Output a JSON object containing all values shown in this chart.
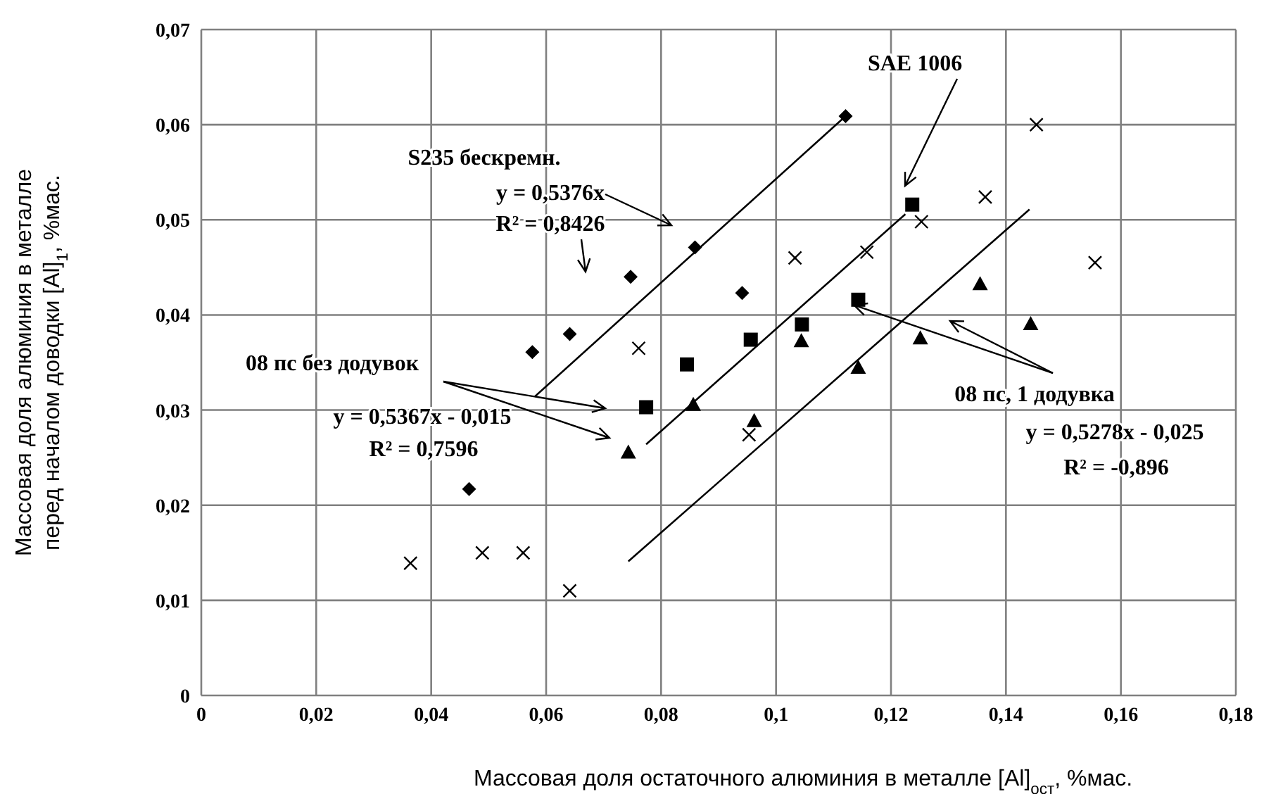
{
  "chart_data": {
    "type": "scatter",
    "xlabel": "Массовая доля остаточного алюминия в металле [Al]$_{ост}$, %мас.",
    "ylabel": "Массовая доля алюминия в металле\nперед началом доводки [Al]$_{1}$, %мас.",
    "xlim": [
      0,
      0.18
    ],
    "ylim": [
      0,
      0.07
    ],
    "xticks": [
      0,
      {
        "value": 0.02,
        "label": "0,02"
      },
      {
        "value": 0.04,
        "label": "0,04"
      },
      {
        "value": 0.06,
        "label": "0,06"
      },
      {
        "value": 0.08,
        "label": "0,08"
      },
      {
        "value": 0.1,
        "label": "0,1"
      },
      {
        "value": 0.12,
        "label": "0,12"
      },
      {
        "value": 0.14,
        "label": "0,14"
      },
      {
        "value": 0.16,
        "label": "0,16"
      },
      {
        "value": 0.18,
        "label": "0,18"
      }
    ],
    "yticks": [
      0,
      {
        "value": 0.01,
        "label": "0,01"
      },
      {
        "value": 0.02,
        "label": "0,02"
      },
      {
        "value": 0.03,
        "label": "0,03"
      },
      {
        "value": 0.04,
        "label": "0,04"
      },
      {
        "value": 0.05,
        "label": "0,05"
      },
      {
        "value": 0.06,
        "label": "0,06"
      },
      {
        "value": 0.07,
        "label": "0,07"
      }
    ],
    "grid": true,
    "series": [
      {
        "type": "scatter",
        "marker": "diamond",
        "color": "#000000",
        "x": [
          0.0466,
          0.0576,
          0.0641,
          0.0747,
          0.0859,
          0.0941,
          0.1121
        ],
        "values": [
          0.0217,
          0.0361,
          0.038,
          0.044,
          0.0471,
          0.0423,
          0.0609
        ]
      },
      {
        "type": "scatter",
        "marker": "square",
        "color": "#000000",
        "x": [
          0.0774,
          0.0845,
          0.0956,
          0.1045,
          0.1143,
          0.1237
        ],
        "values": [
          0.0303,
          0.0348,
          0.0374,
          0.039,
          0.0416,
          0.0516
        ]
      },
      {
        "type": "scatter",
        "marker": "triangle",
        "color": "#000000",
        "x": [
          0.0743,
          0.0856,
          0.0962,
          0.1044,
          0.1143,
          0.1251,
          0.1355,
          0.1443
        ],
        "values": [
          0.0255,
          0.0305,
          0.0288,
          0.0372,
          0.0344,
          0.0375,
          0.0432,
          0.039
        ]
      },
      {
        "type": "scatter",
        "marker": "cross",
        "color": "#000000",
        "x": [
          0.0364,
          0.0489,
          0.056,
          0.0641,
          0.0761,
          0.0953,
          0.1033,
          0.1158,
          0.1253,
          0.1364,
          0.1453,
          0.1555
        ],
        "values": [
          0.0139,
          0.015,
          0.015,
          0.011,
          0.0365,
          0.0274,
          0.046,
          0.0466,
          0.0498,
          0.0524,
          0.06,
          0.0455
        ]
      },
      {
        "type": "line",
        "marker": "none",
        "color": "#000000",
        "x": [
          0.058,
          0.1121
        ],
        "values": [
          0.0314,
          0.0609
        ]
      },
      {
        "type": "line",
        "marker": "none",
        "color": "#000000",
        "x": [
          0.0774,
          0.1225
        ],
        "values": [
          0.0264,
          0.0506
        ]
      },
      {
        "type": "line",
        "marker": "none",
        "color": "#000000",
        "x": [
          0.0743,
          0.1441
        ],
        "values": [
          0.0141,
          0.0511
        ]
      }
    ],
    "annotations": [
      "S235 бескремн.",
      "y = 0,5376x",
      "R² = 0,8426",
      "SAE 1006",
      "08 пс без додувок",
      "y = 0,5367x - 0,015",
      "R² = 0,7596",
      {
        "text": "08 пс, 1 додувка",
        "x": 0.1143,
        "y": 0.0416
      },
      "y = 0,5278x - 0,025",
      "R² = -0,896"
    ]
  }
}
